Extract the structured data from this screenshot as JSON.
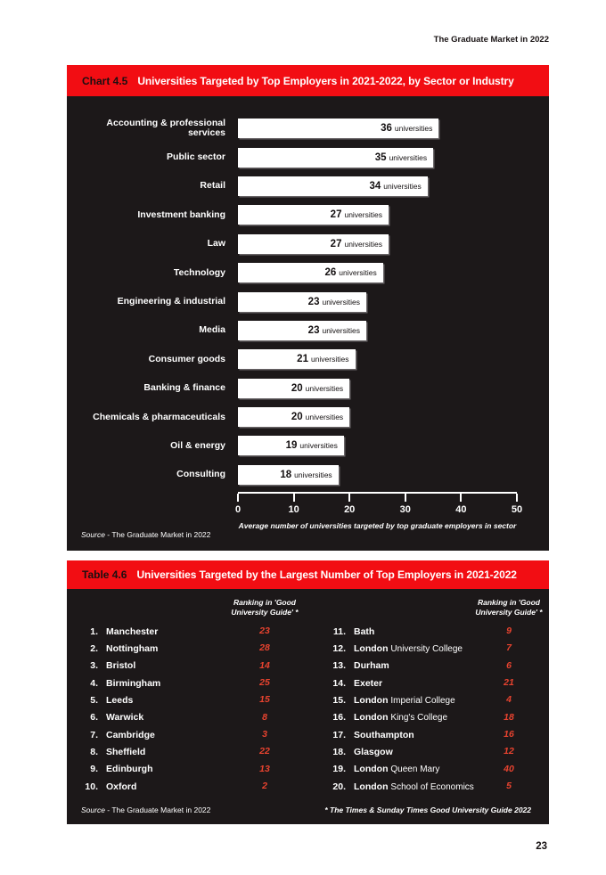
{
  "page": {
    "header": "The Graduate Market in 2022",
    "page_number": "23"
  },
  "colors": {
    "accent_red": "#f20d13",
    "panel_black": "#1c1819",
    "ranking_red": "#e8432f",
    "bar_white": "#ffffff"
  },
  "chart": {
    "tag": "Chart 4.5",
    "title": "Universities Targeted by Top Employers in 2021-2022, by Sector or Industry",
    "unit_label": "universities",
    "source_italic": "Source",
    "source_rest": " - The Graduate Market in 2022"
  },
  "chart_data": {
    "type": "bar",
    "orientation": "horizontal",
    "title": "Universities Targeted by Top Employers in 2021-2022, by Sector or Industry",
    "categories": [
      "Accounting & professional services",
      "Public sector",
      "Retail",
      "Investment banking",
      "Law",
      "Technology",
      "Engineering & industrial",
      "Media",
      "Consumer goods",
      "Banking & finance",
      "Chemicals & pharmaceuticals",
      "Oil & energy",
      "Consulting"
    ],
    "values": [
      36,
      35,
      34,
      27,
      27,
      26,
      23,
      23,
      21,
      20,
      20,
      19,
      18
    ],
    "value_suffix": "universities",
    "xlabel": "Average number of universities targeted by top graduate employers in sector",
    "xlim": [
      0,
      50
    ],
    "xticks": [
      0,
      10,
      20,
      30,
      40,
      50
    ],
    "grid": false,
    "source": "Source - The Graduate Market in 2022"
  },
  "table": {
    "tag": "Table 4.6",
    "title": "Universities Targeted by the Largest Number of Top Employers in 2021-2022",
    "column_header_line1": "Ranking in 'Good",
    "column_header_line2": "University Guide' *",
    "rows": [
      {
        "rank": "1.",
        "name": "Manchester",
        "suffix": "",
        "guide_rank": "23"
      },
      {
        "rank": "2.",
        "name": "Nottingham",
        "suffix": "",
        "guide_rank": "28"
      },
      {
        "rank": "3.",
        "name": "Bristol",
        "suffix": "",
        "guide_rank": "14"
      },
      {
        "rank": "4.",
        "name": "Birmingham",
        "suffix": "",
        "guide_rank": "25"
      },
      {
        "rank": "5.",
        "name": "Leeds",
        "suffix": "",
        "guide_rank": "15"
      },
      {
        "rank": "6.",
        "name": "Warwick",
        "suffix": "",
        "guide_rank": "8"
      },
      {
        "rank": "7.",
        "name": "Cambridge",
        "suffix": "",
        "guide_rank": "3"
      },
      {
        "rank": "8.",
        "name": "Sheffield",
        "suffix": "",
        "guide_rank": "22"
      },
      {
        "rank": "9.",
        "name": "Edinburgh",
        "suffix": "",
        "guide_rank": "13"
      },
      {
        "rank": "10.",
        "name": "Oxford",
        "suffix": "",
        "guide_rank": "2"
      },
      {
        "rank": "11.",
        "name": "Bath",
        "suffix": "",
        "guide_rank": "9"
      },
      {
        "rank": "12.",
        "name": "London",
        "suffix": "University College",
        "guide_rank": "7"
      },
      {
        "rank": "13.",
        "name": "Durham",
        "suffix": "",
        "guide_rank": "6"
      },
      {
        "rank": "14.",
        "name": "Exeter",
        "suffix": "",
        "guide_rank": "21"
      },
      {
        "rank": "15.",
        "name": "London",
        "suffix": "Imperial College",
        "guide_rank": "4"
      },
      {
        "rank": "16.",
        "name": "London",
        "suffix": "King's College",
        "guide_rank": "18"
      },
      {
        "rank": "17.",
        "name": "Southampton",
        "suffix": "",
        "guide_rank": "16"
      },
      {
        "rank": "18.",
        "name": "Glasgow",
        "suffix": "",
        "guide_rank": "12"
      },
      {
        "rank": "19.",
        "name": "London",
        "suffix": "Queen Mary",
        "guide_rank": "40"
      },
      {
        "rank": "20.",
        "name": "London",
        "suffix": "School of Economics",
        "guide_rank": "5"
      }
    ],
    "source_italic": "Source",
    "source_rest": " - The Graduate Market in 2022",
    "footnote": "* The Times & Sunday Times Good University Guide 2022"
  }
}
